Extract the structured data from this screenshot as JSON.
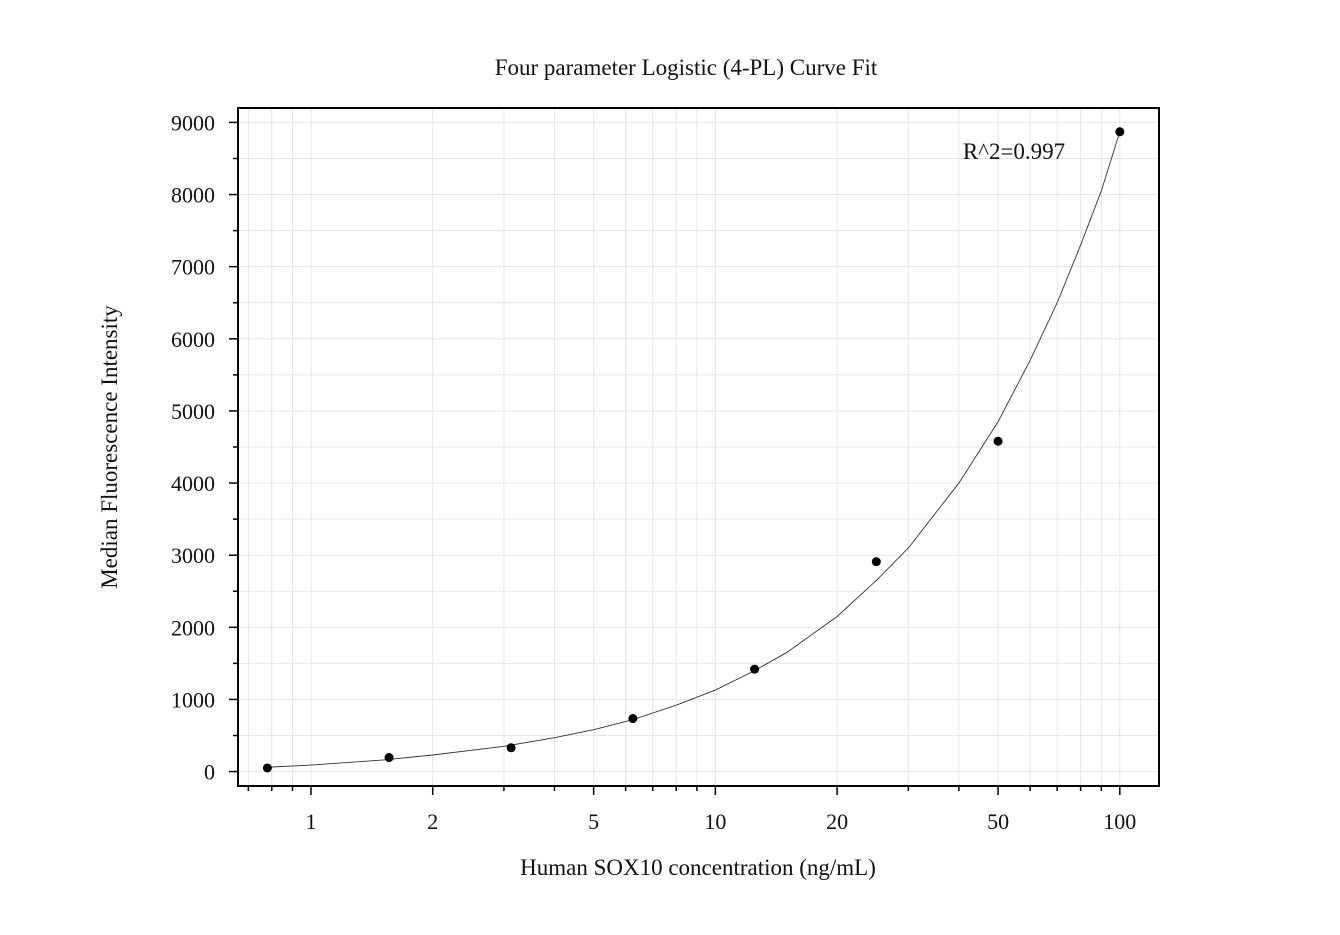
{
  "chart_data": {
    "type": "scatter",
    "title": "Four parameter Logistic (4-PL) Curve Fit",
    "xlabel": "Human SOX10 concentration (ng/mL)",
    "ylabel": "Median Fluorescence Intensity",
    "x_scale": "log",
    "xlim": [
      0.66,
      125
    ],
    "ylim": [
      -200,
      9200
    ],
    "x_ticks": [
      1,
      2,
      5,
      10,
      20,
      50,
      100
    ],
    "x_tick_labels": [
      "1",
      "2",
      "5",
      "10",
      "20",
      "50",
      "100"
    ],
    "y_ticks": [
      0,
      1000,
      2000,
      3000,
      4000,
      5000,
      6000,
      7000,
      8000,
      9000
    ],
    "y_tick_labels": [
      "0",
      "1000",
      "2000",
      "3000",
      "4000",
      "5000",
      "6000",
      "7000",
      "8000",
      "9000"
    ],
    "grid": true,
    "annotation": "R^2=0.997",
    "points": [
      {
        "x": 0.78,
        "y": 50
      },
      {
        "x": 1.56,
        "y": 195
      },
      {
        "x": 3.125,
        "y": 330
      },
      {
        "x": 6.25,
        "y": 735
      },
      {
        "x": 12.5,
        "y": 1420
      },
      {
        "x": 25,
        "y": 2910
      },
      {
        "x": 50,
        "y": 4580
      },
      {
        "x": 100,
        "y": 8870
      }
    ],
    "fit_curve": {
      "x": [
        0.78,
        1,
        1.5,
        2,
        3,
        4,
        5,
        6.25,
        8,
        10,
        12.5,
        15,
        20,
        25,
        30,
        40,
        50,
        60,
        70,
        80,
        90,
        100
      ],
      "y": [
        60,
        90,
        160,
        230,
        350,
        470,
        580,
        720,
        920,
        1130,
        1400,
        1650,
        2150,
        2650,
        3100,
        4000,
        4850,
        5700,
        6500,
        7300,
        8050,
        8870
      ]
    },
    "colors": {
      "points": "#000000",
      "curve": "#333333",
      "grid": "#e6e6e6",
      "axes": "#000000"
    }
  }
}
